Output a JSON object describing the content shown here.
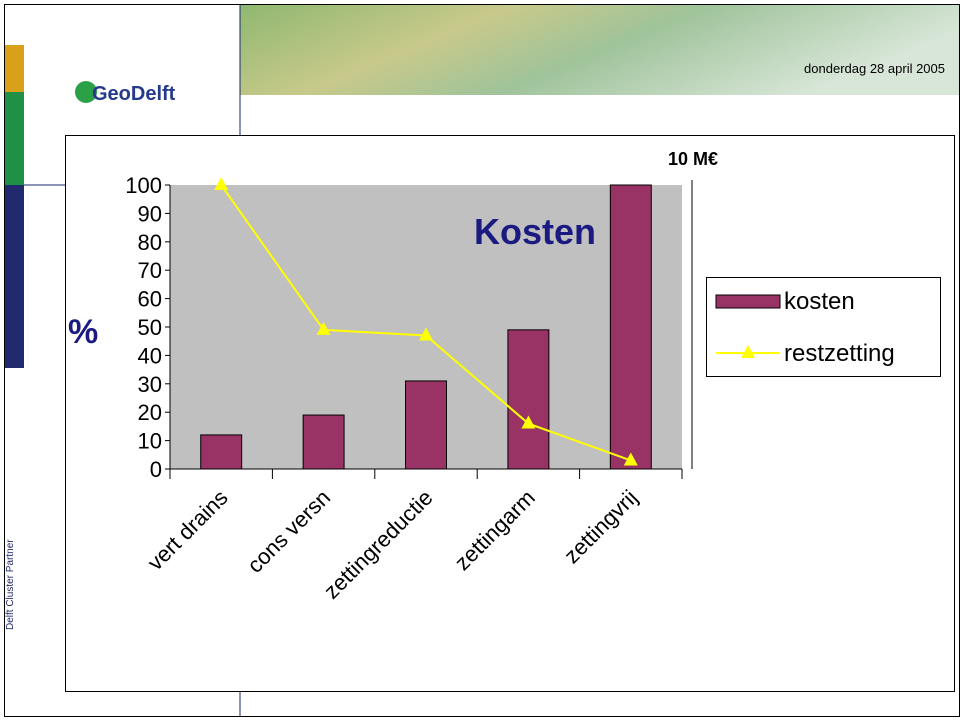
{
  "slide": {
    "logo": "GeoDelft",
    "date": "donderdag 28 april 2005",
    "side_label": "Delft Cluster Partner"
  },
  "chart_data": {
    "type": "bar",
    "title": "Kosten",
    "y_label": "%",
    "annotation": "10 M€",
    "categories": [
      "vert drains",
      "cons versn",
      "zettingreductie",
      "zettingarm",
      "zettingvrij"
    ],
    "series": [
      {
        "name": "kosten",
        "type": "bar",
        "color": "#993366",
        "values": [
          12,
          19,
          31,
          49,
          100
        ]
      },
      {
        "name": "restzetting",
        "type": "line",
        "color": "#ffff00",
        "values": [
          100,
          49,
          47,
          16,
          3
        ]
      }
    ],
    "ylim": [
      0,
      100
    ],
    "yticks": [
      0,
      10,
      20,
      30,
      40,
      50,
      60,
      70,
      80,
      90,
      100
    ],
    "legend": "right"
  }
}
